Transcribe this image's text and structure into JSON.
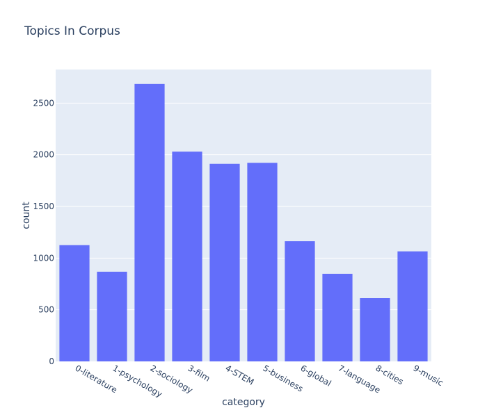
{
  "chart_data": {
    "type": "bar",
    "title": "Topics In Corpus",
    "xlabel": "category",
    "ylabel": "count",
    "categories": [
      "0-literature",
      "1-psychology",
      "2-sociology",
      "3-film",
      "4-STEM",
      "5-business",
      "6-global",
      "7-language",
      "8-cities",
      "9-music"
    ],
    "values": [
      1125,
      868,
      2685,
      2030,
      1912,
      1922,
      1163,
      848,
      612,
      1065
    ],
    "ylim": [
      0,
      2825
    ],
    "yticks": [
      0,
      500,
      1000,
      1500,
      2000,
      2500
    ],
    "grid": true,
    "bar_color": "#636efa",
    "plot_bg_color": "#e5ecf6",
    "text_color": "#2a3f5f"
  }
}
